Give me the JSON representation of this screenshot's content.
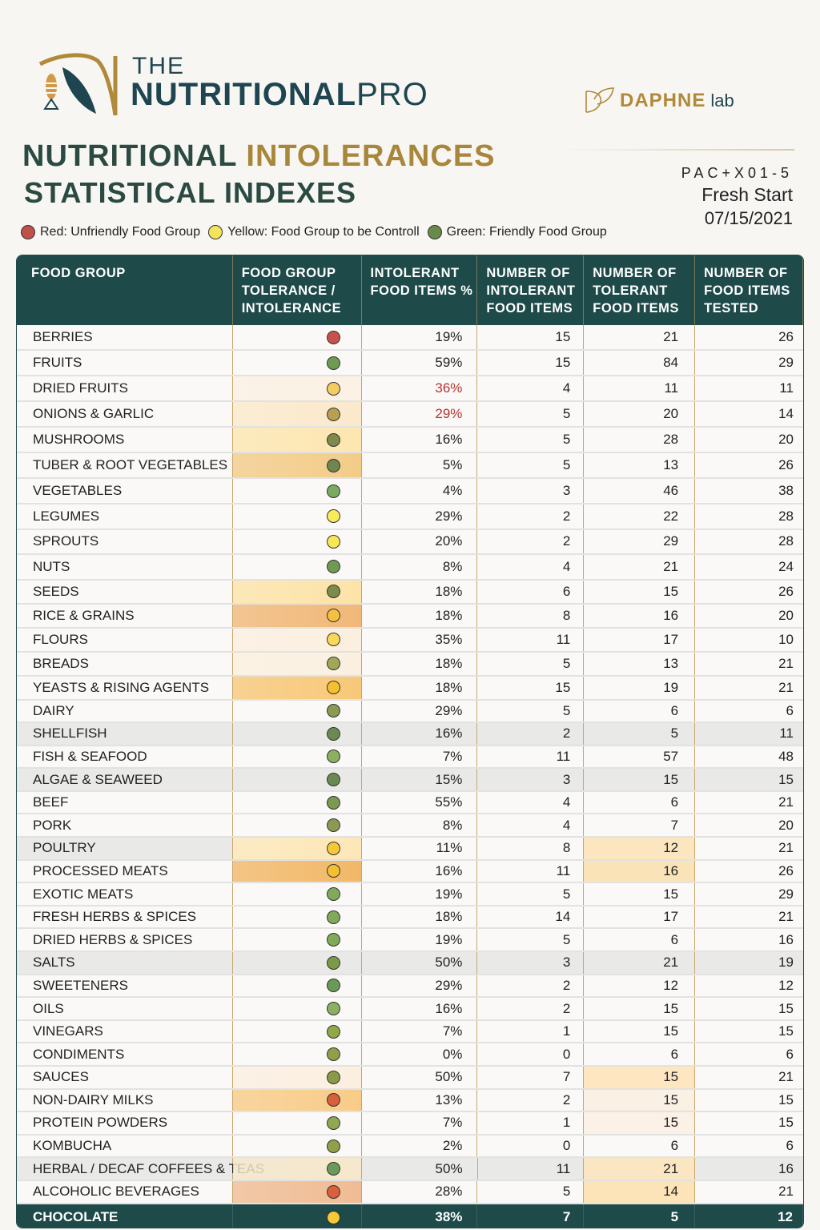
{
  "header": {
    "brand_the": "THE",
    "brand_name": "NUTRITIONAL",
    "brand_pro": "PRO",
    "partner_name": "DAPHNE",
    "partner_suffix": "lab",
    "title_part1": "NUTRITIONAL",
    "title_part2": "INTOLERANCES",
    "title_line2": "STATISTICAL INDEXES",
    "patient_code": "PAC+X01-5",
    "program": "Fresh Start",
    "date": "07/15/2021"
  },
  "legend": [
    {
      "label": "Red: Unfriendly Food Group",
      "color": "#c0504a"
    },
    {
      "label": "Yellow: Food Group to be Controll",
      "color": "#f5e35a"
    },
    {
      "label": "Green: Friendly Food Group",
      "color": "#6a8a4a"
    }
  ],
  "colors": {
    "header_bg": "#1e4a4a",
    "gold": "#a8863a",
    "alert_red": "#b5332e"
  },
  "table": {
    "columns": [
      "FOOD GROUP",
      "FOOD GROUP TOLERANCE / INTOLERANCE",
      "INTOLERANT FOOD ITEMS %",
      "NUMBER OF INTOLERANT FOOD ITEMS",
      "NUMBER OF TOLERANT FOOD ITEMS",
      "NUMBER OF FOOD ITEMS TESTED"
    ],
    "rows": [
      {
        "group": "BERRIES",
        "status": "red",
        "dot": "#c8524a",
        "bg": "",
        "pct": "19%",
        "intol": "15",
        "tol": "21",
        "tested": "26"
      },
      {
        "group": "FRUITS",
        "status": "green",
        "dot": "#6f9a52",
        "bg": "",
        "pct": "59%",
        "intol": "15",
        "tol": "84",
        "tested": "29"
      },
      {
        "group": "DRIED FRUITS",
        "status": "yellow",
        "dot": "#f5cc60",
        "bg": "#fbf1e4",
        "pct": "36%",
        "pct_alert": true,
        "intol": "4",
        "tol": "11",
        "tested": "11"
      },
      {
        "group": "ONIONS & GARLIC",
        "status": "yellow",
        "dot": "#b8a050",
        "bg": "#fbe9cc",
        "pct": "29%",
        "pct_alert": true,
        "intol": "5",
        "tol": "20",
        "tested": "14"
      },
      {
        "group": "MUSHROOMS",
        "status": "green",
        "dot": "#7f8a4a",
        "bg": "#fde6b0",
        "pct": "16%",
        "intol": "5",
        "tol": "28",
        "tested": "20"
      },
      {
        "group": "TUBER & ROOT VEGETABLES",
        "status": "green",
        "dot": "#6f8650",
        "bg": "#f3cc88",
        "pct": "5%",
        "intol": "5",
        "tol": "13",
        "tested": "26"
      },
      {
        "group": "VEGETABLES",
        "status": "green",
        "dot": "#7aaa62",
        "bg": "",
        "pct": "4%",
        "intol": "3",
        "tol": "46",
        "tested": "38"
      },
      {
        "group": "LEGUMES",
        "status": "yellow",
        "dot": "#f8ec5a",
        "bg": "",
        "pct": "29%",
        "intol": "2",
        "tol": "22",
        "tested": "28"
      },
      {
        "group": "SPROUTS",
        "status": "yellow",
        "dot": "#f8e658",
        "bg": "",
        "pct": "20%",
        "intol": "2",
        "tol": "29",
        "tested": "28"
      },
      {
        "group": "NUTS",
        "status": "green",
        "dot": "#6f9a52",
        "bg": "",
        "pct": "8%",
        "intol": "4",
        "tol": "21",
        "tested": "24"
      },
      {
        "group": "SEEDS",
        "status": "green",
        "dot": "#7f8a4a",
        "bg": "#fde3a8",
        "pct": "18%",
        "intol": "6",
        "tol": "15",
        "tested": "26"
      },
      {
        "group": "RICE & GRAINS",
        "status": "yellow",
        "dot": "#f5c040",
        "bg": "#f1b878",
        "pct": "18%",
        "intol": "8",
        "tol": "16",
        "tested": "20"
      },
      {
        "group": "FLOURS",
        "status": "yellow",
        "dot": "#f8d858",
        "bg": "#fbefe0",
        "pct": "35%",
        "intol": "11",
        "tol": "17",
        "tested": "10"
      },
      {
        "group": "BREADS",
        "status": "green",
        "dot": "#a0a858",
        "bg": "#fbf0e0",
        "pct": "18%",
        "intol": "5",
        "tol": "13",
        "tested": "21"
      },
      {
        "group": "YEASTS & RISING AGENTS",
        "status": "yellow",
        "dot": "#f5c030",
        "bg": "#f8c878",
        "pct": "18%",
        "intol": "15",
        "tol": "19",
        "tested": "21"
      },
      {
        "group": "DAIRY",
        "status": "green",
        "dot": "#8a9a50",
        "bg": "",
        "pct": "29%",
        "intol": "5",
        "tol": "6",
        "tested": "6"
      },
      {
        "group": "SHELLFISH",
        "status": "green",
        "dot": "#6a8a52",
        "bg": "",
        "shade": true,
        "pct": "16%",
        "intol": "2",
        "tol": "5",
        "tested": "11"
      },
      {
        "group": "FISH & SEAFOOD",
        "status": "green",
        "dot": "#8ab060",
        "bg": "",
        "pct": "7%",
        "intol": "11",
        "tol": "57",
        "tested": "48"
      },
      {
        "group": "ALGAE & SEAWEED",
        "status": "green",
        "dot": "#6a8a52",
        "bg": "",
        "shade": true,
        "pct": "15%",
        "intol": "3",
        "tol": "15",
        "tested": "15"
      },
      {
        "group": "BEEF",
        "status": "green",
        "dot": "#7a9a50",
        "bg": "",
        "pct": "55%",
        "intol": "4",
        "tol": "6",
        "tested": "21"
      },
      {
        "group": "PORK",
        "status": "green",
        "dot": "#8a9a50",
        "bg": "",
        "pct": "8%",
        "intol": "4",
        "tol": "7",
        "tested": "20"
      },
      {
        "group": "POULTRY",
        "status": "yellow",
        "dot": "#f5c838",
        "bg": "#fde7b8",
        "shade_label": true,
        "pct": "11%",
        "intol": "8",
        "tol": "12",
        "tol_bg": "#fbe6c0",
        "tested": "21"
      },
      {
        "group": "PROCESSED MEATS",
        "status": "yellow",
        "dot": "#f5c030",
        "bg": "#f2b868",
        "pct": "16%",
        "intol": "11",
        "tol": "16",
        "tol_bg": "#fbe3b8",
        "tested": "26"
      },
      {
        "group": "EXOTIC MEATS",
        "status": "green",
        "dot": "#80aa5a",
        "bg": "",
        "pct": "19%",
        "intol": "5",
        "tol": "15",
        "tested": "29"
      },
      {
        "group": "FRESH HERBS & SPICES",
        "status": "green",
        "dot": "#80aa5a",
        "bg": "",
        "pct": "18%",
        "intol": "14",
        "tol": "17",
        "tested": "21"
      },
      {
        "group": "DRIED HERBS & SPICES",
        "status": "green",
        "dot": "#80aa5a",
        "bg": "",
        "pct": "19%",
        "intol": "5",
        "tol": "6",
        "tested": "16"
      },
      {
        "group": "SALTS",
        "status": "green",
        "dot": "#7a9a48",
        "bg": "",
        "shade": true,
        "pct": "50%",
        "intol": "3",
        "tol": "21",
        "tested": "19"
      },
      {
        "group": "SWEETENERS",
        "status": "green",
        "dot": "#6a9a58",
        "bg": "",
        "pct": "29%",
        "intol": "2",
        "tol": "12",
        "tested": "12"
      },
      {
        "group": "OILS",
        "status": "green",
        "dot": "#8ab060",
        "bg": "",
        "pct": "16%",
        "intol": "2",
        "tol": "15",
        "tested": "15"
      },
      {
        "group": "VINEGARS",
        "status": "green",
        "dot": "#90a848",
        "bg": "",
        "pct": "7%",
        "intol": "1",
        "tol": "15",
        "tested": "15"
      },
      {
        "group": "CONDIMENTS",
        "status": "green",
        "dot": "#90a048",
        "bg": "",
        "pct": "0%",
        "intol": "0",
        "tol": "6",
        "tested": "6"
      },
      {
        "group": "SAUCES",
        "status": "green",
        "dot": "#8a9a48",
        "bg": "#fbefe0",
        "pct": "50%",
        "intol": "7",
        "tol": "15",
        "tol_bg": "#fde6c0",
        "tested": "21"
      },
      {
        "group": "NON-DAIRY MILKS",
        "status": "red",
        "dot": "#d8603a",
        "bg": "#f8cc88",
        "pct": "13%",
        "intol": "2",
        "tol": "15",
        "tol_bg": "#fbf0e4",
        "tested": "15"
      },
      {
        "group": "PROTEIN POWDERS",
        "status": "green",
        "dot": "#90a850",
        "bg": "",
        "pct": "7%",
        "intol": "1",
        "tol": "15",
        "tol_bg": "#fbf1e6",
        "tested": "15"
      },
      {
        "group": "KOMBUCHA",
        "status": "green",
        "dot": "#90a048",
        "bg": "",
        "pct": "2%",
        "intol": "0",
        "tol": "6",
        "tested": "6"
      },
      {
        "group": "HERBAL / DECAF COFFEES & TEAS",
        "status": "green",
        "dot": "#6a9a58",
        "bg": "#f6e8cc",
        "shade": true,
        "pct": "50%",
        "intol": "11",
        "tol": "21",
        "tol_bg": "#fbe6c4",
        "tested": "16"
      },
      {
        "group": "ALCOHOLIC BEVERAGES",
        "status": "red",
        "dot": "#d8603a",
        "bg": "#f0bc94",
        "pct": "28%",
        "intol": "5",
        "tol": "14",
        "tol_bg": "#fce3b8",
        "tested": "21"
      }
    ],
    "footer_row": {
      "group": "CHOCOLATE",
      "status": "yellow",
      "dot": "#f8c838",
      "pct": "38%",
      "intol": "7",
      "tol": "5",
      "tested": "12"
    }
  }
}
